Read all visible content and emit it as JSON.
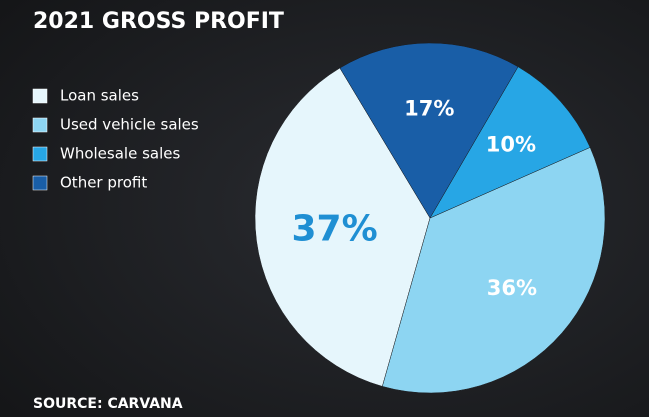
{
  "chart_data": {
    "type": "pie",
    "title": "2021 GROSS PROFIT",
    "source": "SOURCE: CARVANA",
    "categories": [
      "Loan sales",
      "Used vehicle sales",
      "Wholesale sales",
      "Other profit"
    ],
    "values": [
      37,
      36,
      10,
      17
    ],
    "value_labels": [
      "37%",
      "36%",
      "10%",
      "17%"
    ],
    "colors": [
      "#e6f6fc",
      "#8dd5f2",
      "#27a6e5",
      "#195ea7"
    ]
  }
}
